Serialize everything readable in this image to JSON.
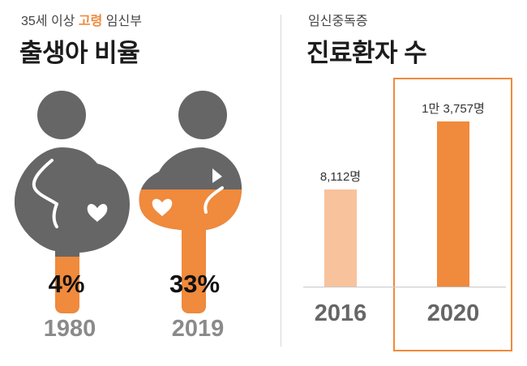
{
  "left_panel": {
    "subtitle_pre": "35세 이상 ",
    "subtitle_accent": "고령",
    "subtitle_post": " 임신부",
    "title": "출생아 비율",
    "figures": [
      {
        "year": "1980",
        "percent_label": "4%",
        "share": 0.04
      },
      {
        "year": "2019",
        "percent_label": "33%",
        "share": 0.33
      }
    ]
  },
  "right_panel": {
    "subtitle": "임신중독증",
    "title": "진료환자 수"
  },
  "colors": {
    "accent": "#f08a3c",
    "accent_light": "#f8c29c",
    "figure_gray": "#666666",
    "year_gray": "#8a8a8a"
  },
  "chart_data": [
    {
      "type": "pictogram",
      "title": "35세 이상 고령 임신부 출생아 비율",
      "categories": [
        "1980",
        "2019"
      ],
      "values": [
        4,
        33
      ],
      "value_labels": [
        "4%",
        "33%"
      ],
      "unit": "%"
    },
    {
      "type": "bar",
      "title": "임신중독증 진료환자 수",
      "categories": [
        "2016",
        "2020"
      ],
      "values": [
        8112,
        13757
      ],
      "value_labels": [
        "8,112명",
        "1만 3,757명"
      ],
      "ylim": [
        0,
        14500
      ],
      "grid": false,
      "highlight": "2020"
    }
  ]
}
